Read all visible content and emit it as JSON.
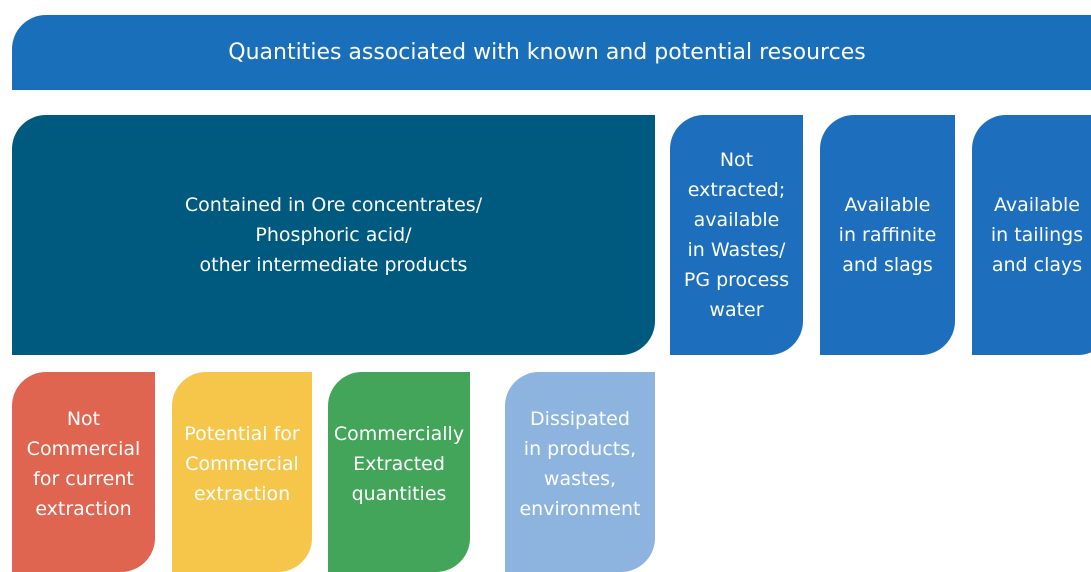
{
  "title": "Quantities associated with known and potential resources",
  "nodes": [
    {
      "lines": [
        "Contained in Ore concentrates/",
        "Phosphoric acid/",
        "other intermediate products"
      ]
    },
    {
      "lines": [
        "Not",
        "extracted;",
        "available",
        "in Wastes/",
        "PG  process",
        "water"
      ]
    },
    {
      "lines": [
        "Available",
        "in raffinite",
        "and slags"
      ]
    },
    {
      "lines": [
        "Available",
        "in tailings",
        "and clays"
      ]
    },
    {
      "lines": [
        "Not",
        "Commercial",
        "for current",
        "extraction"
      ]
    },
    {
      "lines": [
        "Potential for",
        "Commercial",
        "extraction"
      ]
    },
    {
      "lines": [
        "Commercially",
        "Extracted",
        "quantities"
      ]
    },
    {
      "lines": [
        "Dissipated",
        "in products,",
        "wastes,",
        "environment"
      ]
    }
  ]
}
